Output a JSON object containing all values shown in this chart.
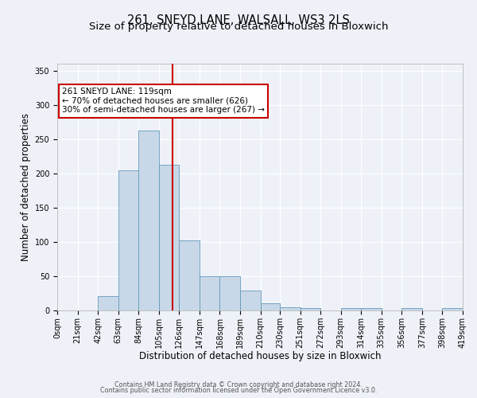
{
  "title": "261, SNEYD LANE, WALSALL, WS3 2LS",
  "subtitle": "Size of property relative to detached houses in Bloxwich",
  "xlabel": "Distribution of detached houses by size in Bloxwich",
  "ylabel": "Number of detached properties",
  "bin_edges": [
    0,
    21,
    42,
    63,
    84,
    105,
    126,
    147,
    168,
    189,
    210,
    230,
    251,
    272,
    293,
    314,
    335,
    356,
    377,
    398,
    419
  ],
  "bin_counts": [
    0,
    0,
    21,
    204,
    262,
    212,
    102,
    50,
    50,
    29,
    10,
    5,
    4,
    0,
    4,
    4,
    0,
    3,
    0,
    3
  ],
  "bar_color": "#c8d8e8",
  "bar_edge_color": "#6699bb",
  "vline_x": 119,
  "vline_color": "#cc0000",
  "annotation_text": "261 SNEYD LANE: 119sqm\n← 70% of detached houses are smaller (626)\n30% of semi-detached houses are larger (267) →",
  "annotation_box_color": "#ffffff",
  "annotation_box_edge": "#cc0000",
  "ylim": [
    0,
    360
  ],
  "yticks": [
    0,
    50,
    100,
    150,
    200,
    250,
    300,
    350
  ],
  "tick_labels": [
    "0sqm",
    "21sqm",
    "42sqm",
    "63sqm",
    "84sqm",
    "105sqm",
    "126sqm",
    "147sqm",
    "168sqm",
    "189sqm",
    "210sqm",
    "230sqm",
    "251sqm",
    "272sqm",
    "293sqm",
    "314sqm",
    "335sqm",
    "356sqm",
    "377sqm",
    "398sqm",
    "419sqm"
  ],
  "footer_line1": "Contains HM Land Registry data © Crown copyright and database right 2024.",
  "footer_line2": "Contains public sector information licensed under the Open Government Licence v3.0.",
  "bg_color": "#eef2f8",
  "grid_color": "#ffffff",
  "title_fontsize": 10.5,
  "subtitle_fontsize": 9.5,
  "label_fontsize": 8.5,
  "tick_fontsize": 7,
  "footer_fontsize": 5.8
}
